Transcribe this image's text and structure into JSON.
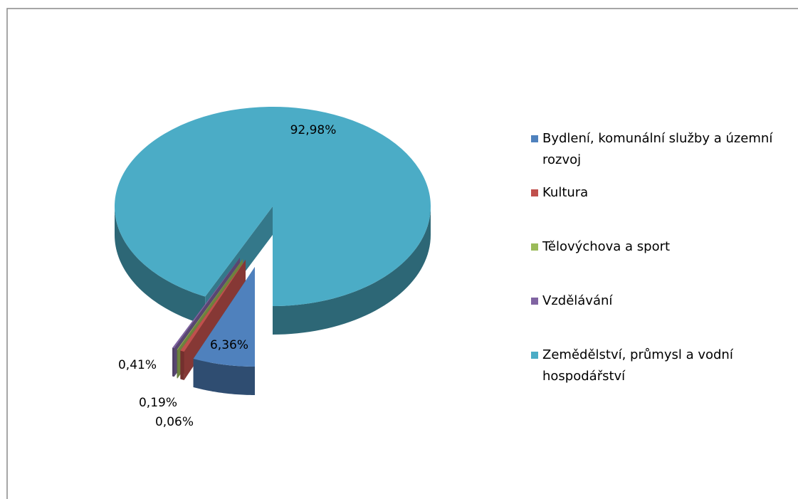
{
  "chart_data": {
    "type": "pie",
    "categories": [
      "Bydlení, komunální služby a územní rozvoj",
      "Kultura",
      "Tělovýchova a sport",
      "Vzdělávání",
      "Zemědělství, průmysl a vodní hospodářství"
    ],
    "values": [
      6.36,
      0.41,
      0.06,
      0.19,
      92.98
    ],
    "value_labels": [
      "6,36%",
      "0,41%",
      "0,06%",
      "0,19%",
      "92,98%"
    ],
    "colors": [
      "#4f81bd",
      "#c0504d",
      "#9bbb59",
      "#8064a2",
      "#4bacc6"
    ],
    "legend": "right"
  }
}
